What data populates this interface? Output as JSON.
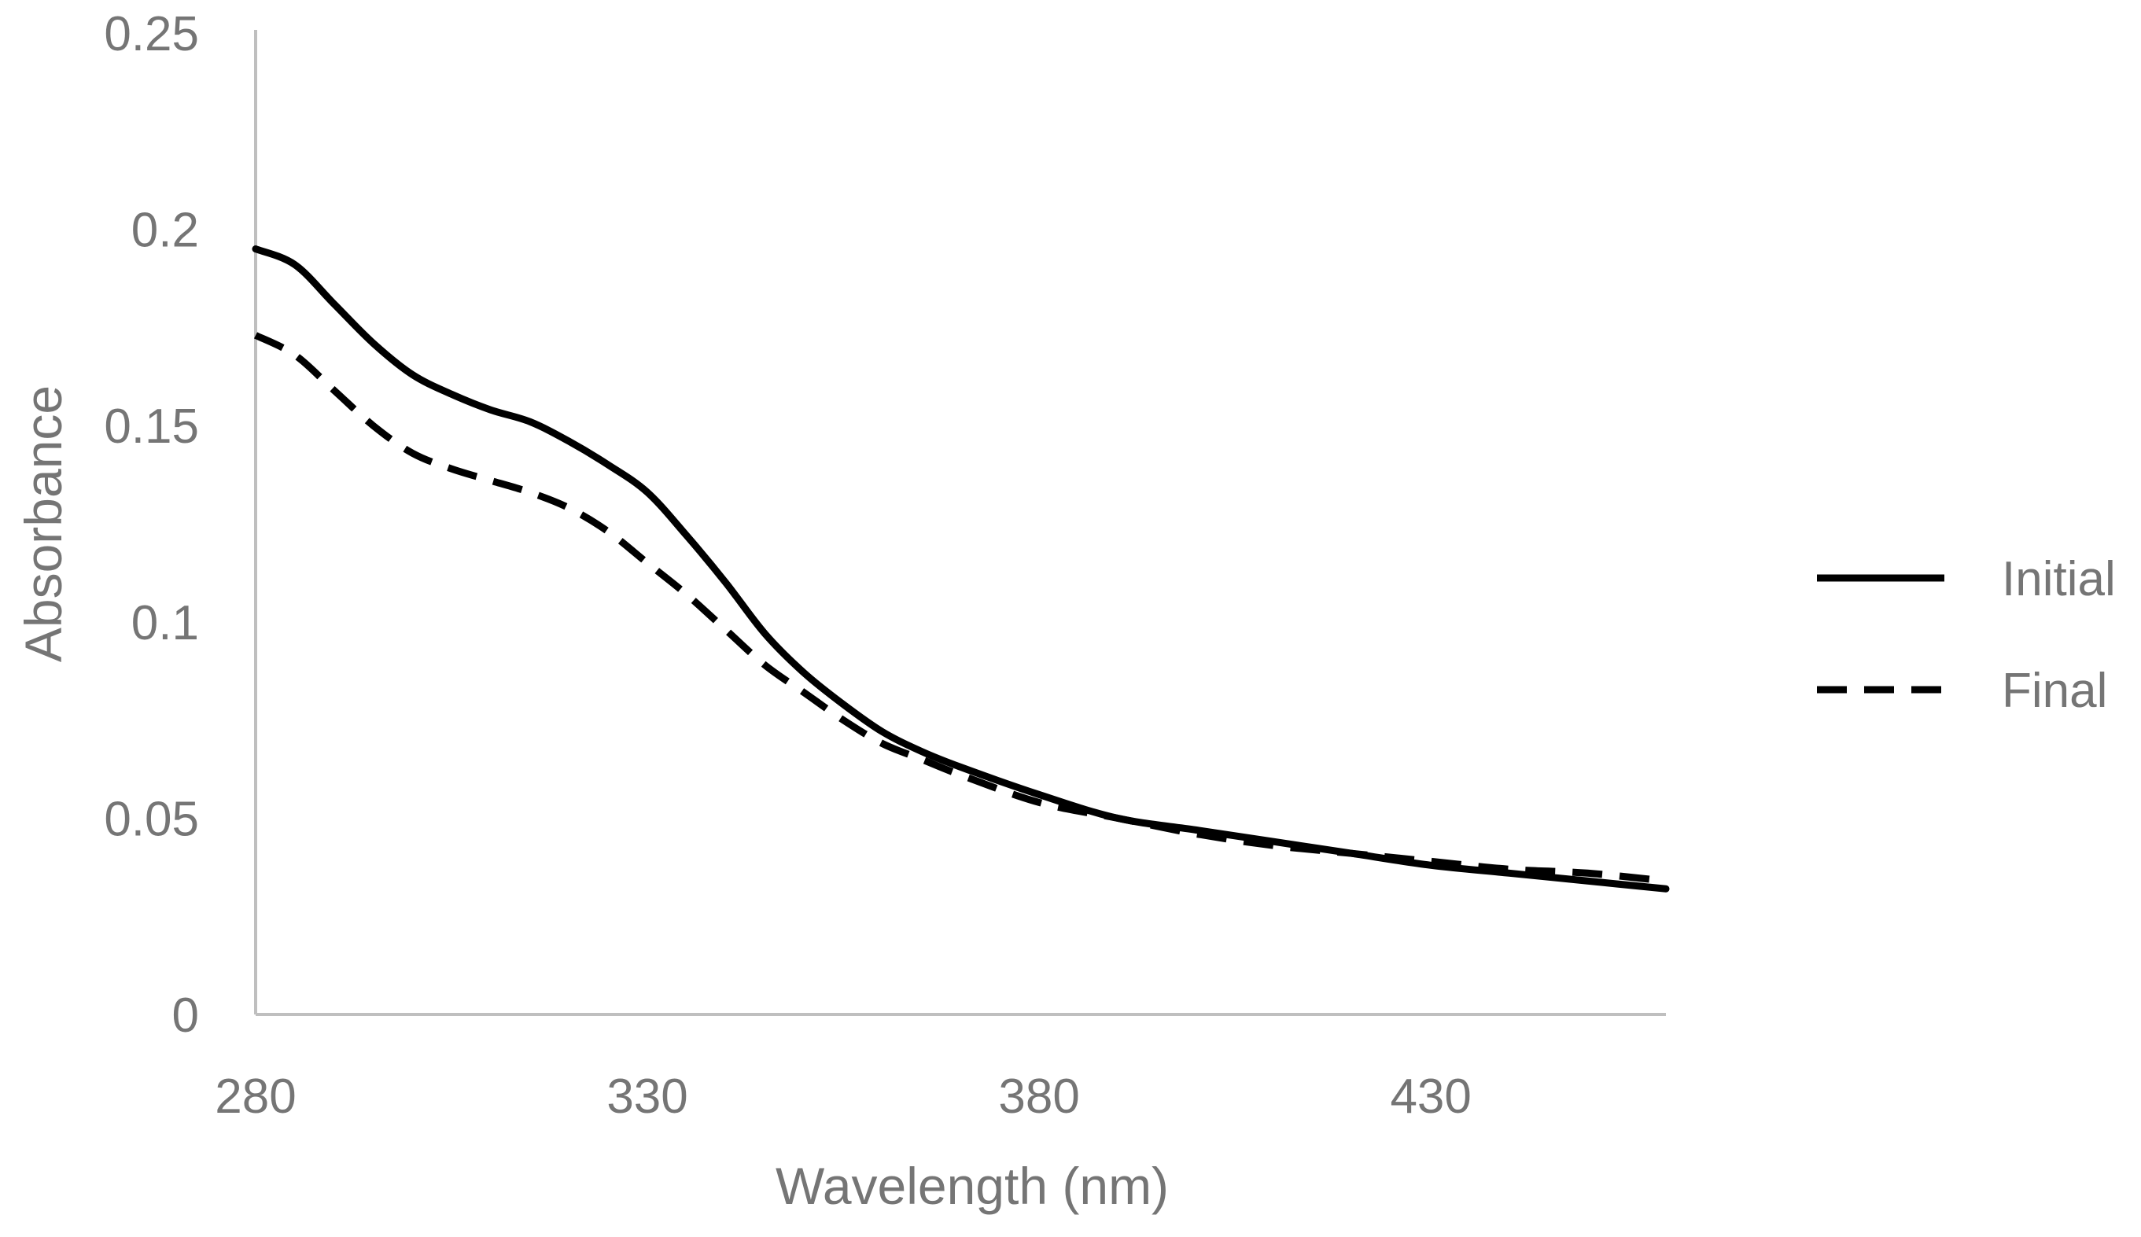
{
  "chart_data": {
    "type": "line",
    "title": "",
    "xlabel": "Wavelength (nm)",
    "ylabel": "Absorbance",
    "xlim": [
      280,
      460
    ],
    "ylim": [
      0,
      0.25
    ],
    "x_ticks": [
      280,
      330,
      380,
      430
    ],
    "x_tick_labels": [
      "280",
      "330",
      "380",
      "430"
    ],
    "y_ticks": [
      0,
      0.05,
      0.1,
      0.15,
      0.2,
      0.25
    ],
    "y_tick_labels": [
      "0",
      "0.05",
      "0.1",
      "0.15",
      "0.2",
      "0.25"
    ],
    "grid": false,
    "legend_position": "right",
    "colors": {
      "series": "#000000",
      "axis": "#bfbfbf",
      "text": "#757575"
    },
    "series": [
      {
        "name": "Initial",
        "style": "solid",
        "x": [
          280,
          285,
          290,
          295,
          300,
          305,
          310,
          315,
          320,
          325,
          330,
          335,
          340,
          345,
          350,
          355,
          360,
          365,
          370,
          380,
          390,
          400,
          410,
          420,
          430,
          440,
          450,
          460
        ],
        "y": [
          0.195,
          0.191,
          0.181,
          0.171,
          0.163,
          0.158,
          0.154,
          0.151,
          0.146,
          0.14,
          0.133,
          0.122,
          0.11,
          0.097,
          0.087,
          0.079,
          0.072,
          0.067,
          0.063,
          0.056,
          0.05,
          0.047,
          0.044,
          0.041,
          0.038,
          0.036,
          0.034,
          0.032
        ]
      },
      {
        "name": "Final",
        "style": "dashed",
        "x": [
          280,
          285,
          290,
          295,
          300,
          305,
          310,
          315,
          320,
          325,
          330,
          335,
          340,
          345,
          350,
          355,
          360,
          365,
          370,
          380,
          390,
          400,
          410,
          420,
          430,
          440,
          450,
          460
        ],
        "y": [
          0.173,
          0.168,
          0.159,
          0.15,
          0.143,
          0.139,
          0.136,
          0.133,
          0.129,
          0.123,
          0.115,
          0.107,
          0.098,
          0.089,
          0.082,
          0.075,
          0.069,
          0.065,
          0.061,
          0.054,
          0.05,
          0.046,
          0.043,
          0.041,
          0.039,
          0.037,
          0.036,
          0.034
        ]
      }
    ]
  }
}
